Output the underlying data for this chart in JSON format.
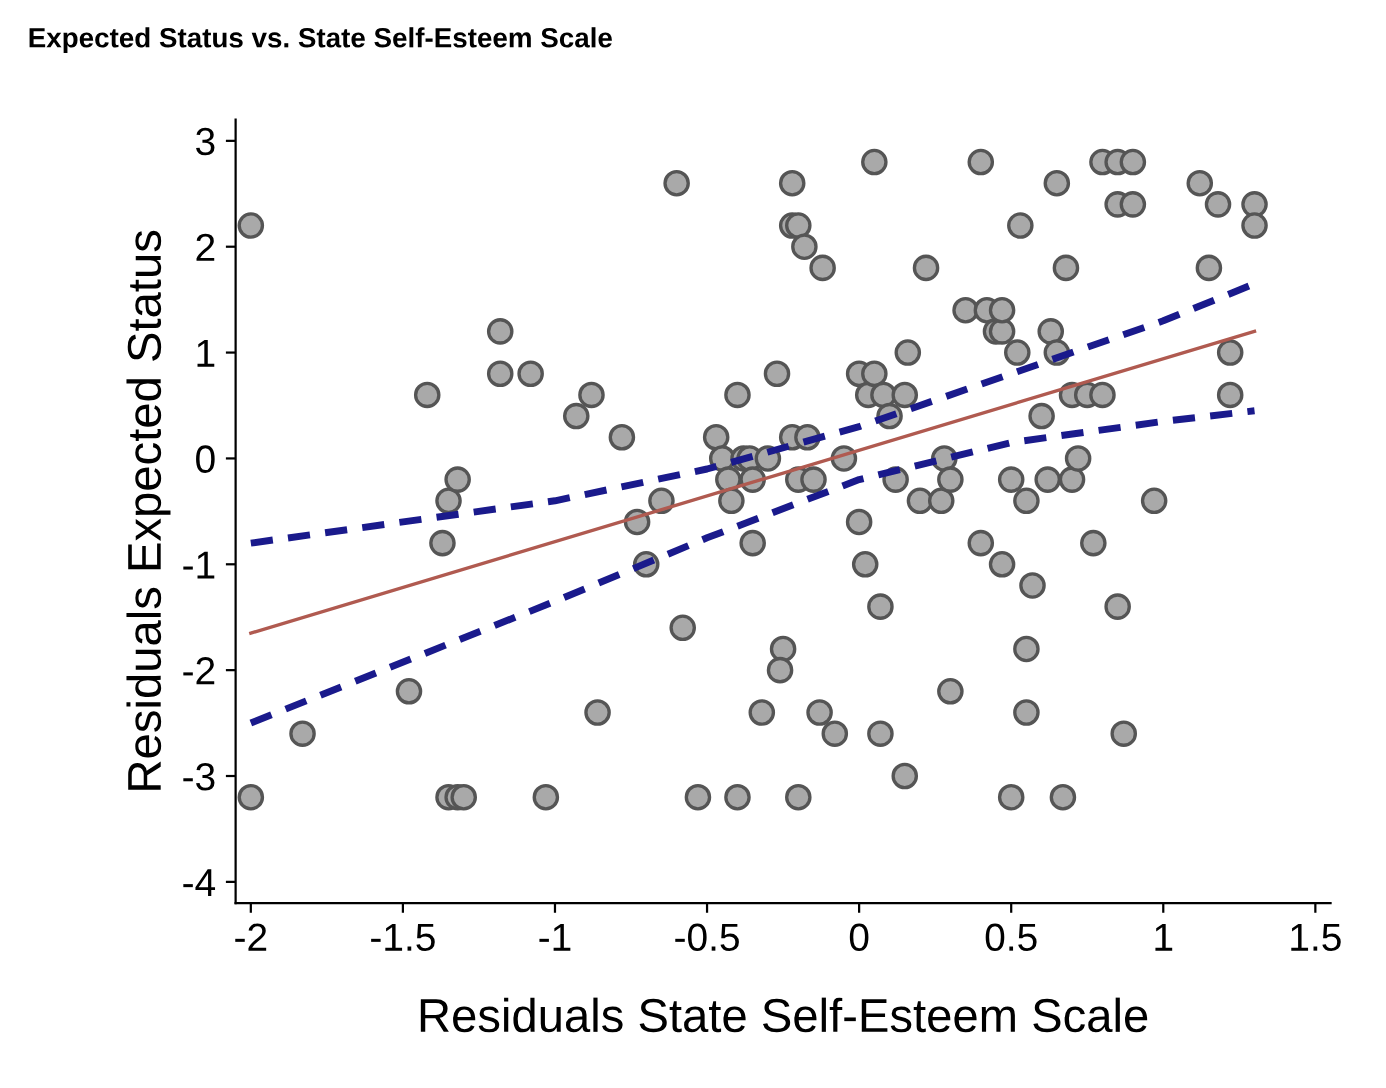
{
  "chart_data": {
    "type": "scatter",
    "title": "Expected Status vs. State Self-Esteem Scale",
    "xlabel": "Residuals State Self-Esteem Scale",
    "ylabel": "Residuals Expected Status",
    "xlim": [
      -2.05,
      1.55
    ],
    "ylim": [
      -4.2,
      3.2
    ],
    "xticks": [
      {
        "value": -2,
        "label": "-2"
      },
      {
        "value": -1.5,
        "label": "-1.5"
      },
      {
        "value": -1,
        "label": "-1"
      },
      {
        "value": -0.5,
        "label": "-0.5"
      },
      0,
      0.5,
      1,
      1.5
    ],
    "yticks": [
      {
        "value": -4,
        "label": "-4"
      },
      {
        "value": -3,
        "label": "-3"
      },
      {
        "value": -2,
        "label": "-2"
      },
      {
        "value": -1,
        "label": "-1"
      },
      0,
      1,
      2,
      3
    ],
    "grid": false,
    "legend": false,
    "series": [
      {
        "color": "#a9a9a9",
        "marker": "circle",
        "x": [
          -2,
          -2,
          -1.83,
          -1.48,
          -1.42,
          -1.37,
          -1.35,
          -1.32,
          -1.35,
          -1.32,
          -1.3,
          -1.18,
          -1.18,
          -1.08,
          -1.03,
          -0.93,
          -0.88,
          -0.86,
          -0.78,
          -0.73,
          -0.7,
          -0.65,
          -0.6,
          -0.58,
          -0.53,
          -0.47,
          -0.45,
          -0.43,
          -0.42,
          -0.4,
          -0.38,
          -0.36,
          -0.35,
          -0.4,
          -0.35,
          -0.32,
          -0.3,
          -0.27,
          -0.25,
          -0.26,
          -0.22,
          -0.22,
          -0.2,
          -0.18,
          -0.22,
          -0.2,
          -0.17,
          -0.15,
          -0.12,
          -0.13,
          -0.08,
          -0.2,
          -0.05,
          0,
          0.03,
          0.05,
          0.08,
          0,
          0.02,
          0.07,
          0.07,
          0.05,
          0.1,
          0.12,
          0.15,
          0.16,
          0.15,
          0.2,
          0.22,
          0.27,
          0.28,
          0.3,
          0.3,
          0.35,
          0.4,
          0.42,
          0.4,
          0.45,
          0.47,
          0.47,
          0.47,
          0.5,
          0.52,
          0.53,
          0.55,
          0.55,
          0.55,
          0.5,
          0.57,
          0.6,
          0.62,
          0.63,
          0.65,
          0.65,
          0.68,
          0.7,
          0.7,
          0.72,
          0.67,
          0.75,
          0.77,
          0.8,
          0.8,
          0.85,
          0.9,
          0.85,
          0.9,
          0.85,
          0.87,
          0.97,
          1.12,
          1.15,
          1.18,
          1.22,
          1.22,
          1.3,
          1.3
        ],
        "values": [
          2.2,
          -3.2,
          -2.6,
          -2.2,
          0.6,
          -0.8,
          -0.4,
          -0.2,
          -3.2,
          -3.2,
          -3.2,
          1.2,
          0.8,
          0.8,
          -3.2,
          0.4,
          0.6,
          -2.4,
          0.2,
          -0.6,
          -1.0,
          -0.4,
          2.6,
          -1.6,
          -3.2,
          0.2,
          0.0,
          -0.2,
          -0.4,
          0.6,
          0.0,
          0.0,
          -0.2,
          -3.2,
          -0.8,
          -2.4,
          0.0,
          0.8,
          -1.8,
          -2.0,
          2.6,
          2.2,
          2.2,
          2.0,
          0.2,
          -0.2,
          0.2,
          -0.2,
          1.8,
          -2.4,
          -2.6,
          -3.2,
          0.0,
          0.8,
          0.6,
          0.8,
          0.6,
          -0.6,
          -1.0,
          -1.4,
          -2.6,
          2.8,
          0.4,
          -0.2,
          0.6,
          1.0,
          -3.0,
          -0.4,
          1.8,
          -0.4,
          0.0,
          -0.2,
          -2.2,
          1.4,
          2.8,
          1.4,
          -0.8,
          1.2,
          1.2,
          1.4,
          -1.0,
          -0.2,
          1.0,
          2.2,
          -0.4,
          -1.8,
          -2.4,
          -3.2,
          -1.2,
          0.4,
          -0.2,
          1.2,
          2.6,
          1.0,
          1.8,
          0.6,
          -0.2,
          0.0,
          -3.2,
          0.6,
          -0.8,
          0.6,
          2.8,
          2.8,
          2.8,
          2.4,
          2.4,
          -1.4,
          -2.6,
          -0.4,
          2.6,
          1.8,
          2.4,
          1.0,
          0.6,
          2.4,
          2.2
        ]
      },
      {
        "type": "line",
        "color": "#b05a50",
        "line_style": "solid",
        "x": [
          -2,
          1.3
        ],
        "values": [
          -1.65,
          1.2
        ]
      },
      {
        "type": "line",
        "color": "#1a1a8c",
        "line_style": "dashed",
        "x": [
          -2,
          -1,
          -0.5,
          0,
          0.5,
          1,
          1.3
        ],
        "values": [
          -0.8,
          -0.4,
          -0.1,
          0.3,
          0.8,
          1.3,
          1.65
        ]
      },
      {
        "type": "line",
        "color": "#1a1a8c",
        "line_style": "dashed",
        "x": [
          -2,
          -1,
          -0.5,
          0,
          0.5,
          1,
          1.3
        ],
        "values": [
          -2.5,
          -1.35,
          -0.75,
          -0.2,
          0.15,
          0.35,
          0.45
        ]
      }
    ]
  }
}
